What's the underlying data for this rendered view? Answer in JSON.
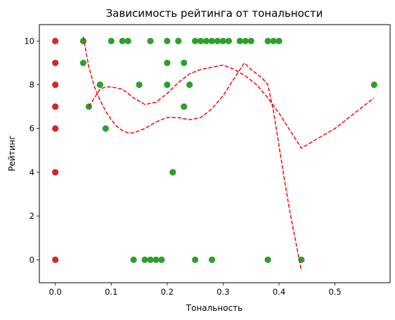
{
  "chart_data": {
    "type": "scatter",
    "title": "Зависимость рейтинга от тональности",
    "xlabel": "Тональность",
    "ylabel": "Рейтинг",
    "xlim": [
      -0.0285,
      0.5985
    ],
    "ylim": [
      -1.05,
      10.75
    ],
    "x_ticks": [
      0.0,
      0.1,
      0.2,
      0.3,
      0.4,
      0.5
    ],
    "x_tick_labels": [
      "0.0",
      "0.1",
      "0.2",
      "0.3",
      "0.4",
      "0.5"
    ],
    "y_ticks": [
      0,
      2,
      4,
      6,
      8,
      10
    ],
    "y_tick_labels": [
      "0",
      "2",
      "4",
      "6",
      "8",
      "10"
    ],
    "grid": false,
    "colors": {
      "green": "#2ca02c",
      "red": "#d62728",
      "line": "#ff0000"
    },
    "series": [
      {
        "color": "#2ca02c",
        "points": [
          [
            0.05,
            10
          ],
          [
            0.1,
            10
          ],
          [
            0.12,
            10
          ],
          [
            0.13,
            10
          ],
          [
            0.17,
            10
          ],
          [
            0.2,
            10
          ],
          [
            0.22,
            10
          ],
          [
            0.25,
            10
          ],
          [
            0.26,
            10
          ],
          [
            0.27,
            10
          ],
          [
            0.28,
            10
          ],
          [
            0.29,
            10
          ],
          [
            0.3,
            10
          ],
          [
            0.31,
            10
          ],
          [
            0.33,
            10
          ],
          [
            0.34,
            10
          ],
          [
            0.35,
            10
          ],
          [
            0.38,
            10
          ],
          [
            0.39,
            10
          ],
          [
            0.4,
            10
          ],
          [
            0.05,
            9
          ],
          [
            0.2,
            9
          ],
          [
            0.23,
            9
          ],
          [
            0.08,
            8
          ],
          [
            0.15,
            8
          ],
          [
            0.2,
            8
          ],
          [
            0.24,
            8
          ],
          [
            0.57,
            8
          ],
          [
            0.06,
            7
          ],
          [
            0.23,
            7
          ],
          [
            0.09,
            6
          ],
          [
            0.21,
            4
          ],
          [
            0.14,
            0
          ],
          [
            0.16,
            0
          ],
          [
            0.17,
            0
          ],
          [
            0.18,
            0
          ],
          [
            0.19,
            0
          ],
          [
            0.25,
            0
          ],
          [
            0.28,
            0
          ],
          [
            0.38,
            0
          ],
          [
            0.44,
            0
          ]
        ]
      },
      {
        "color": "#d62728",
        "points": [
          [
            0,
            10
          ],
          [
            0,
            9
          ],
          [
            0,
            8
          ],
          [
            0,
            7
          ],
          [
            0,
            6
          ],
          [
            0,
            4
          ],
          [
            0,
            0
          ]
        ]
      }
    ],
    "trend_lines": [
      {
        "style": "dashed",
        "color": "#ff0000",
        "points": [
          [
            0.05,
            10.2
          ],
          [
            0.06,
            8.8
          ],
          [
            0.07,
            7.9
          ],
          [
            0.08,
            7.3
          ],
          [
            0.09,
            6.8
          ],
          [
            0.1,
            6.4
          ],
          [
            0.11,
            6.1
          ],
          [
            0.12,
            5.9
          ],
          [
            0.13,
            5.8
          ],
          [
            0.14,
            5.8
          ],
          [
            0.16,
            6.0
          ],
          [
            0.18,
            6.3
          ],
          [
            0.2,
            6.5
          ],
          [
            0.22,
            6.5
          ],
          [
            0.24,
            6.4
          ],
          [
            0.26,
            6.5
          ],
          [
            0.28,
            6.9
          ],
          [
            0.3,
            7.5
          ],
          [
            0.32,
            8.3
          ],
          [
            0.338,
            9.0
          ],
          [
            0.35,
            8.7
          ],
          [
            0.37,
            8.3
          ],
          [
            0.38,
            8.0
          ],
          [
            0.39,
            6.8
          ],
          [
            0.4,
            5.2
          ],
          [
            0.41,
            3.6
          ],
          [
            0.42,
            2.1
          ],
          [
            0.43,
            0.8
          ],
          [
            0.44,
            -0.5
          ]
        ]
      },
      {
        "style": "dashed",
        "color": "#ff0000",
        "points": [
          [
            0.06,
            7.0
          ],
          [
            0.08,
            7.8
          ],
          [
            0.09,
            7.9
          ],
          [
            0.1,
            7.9
          ],
          [
            0.12,
            7.8
          ],
          [
            0.14,
            7.4
          ],
          [
            0.16,
            7.1
          ],
          [
            0.18,
            7.2
          ],
          [
            0.2,
            7.6
          ],
          [
            0.22,
            8.1
          ],
          [
            0.24,
            8.5
          ],
          [
            0.26,
            8.7
          ],
          [
            0.28,
            8.8
          ],
          [
            0.3,
            8.9
          ],
          [
            0.32,
            8.7
          ],
          [
            0.34,
            8.4
          ],
          [
            0.36,
            8.0
          ],
          [
            0.38,
            7.4
          ],
          [
            0.4,
            6.7
          ],
          [
            0.42,
            5.9
          ],
          [
            0.44,
            5.1
          ],
          [
            0.5,
            6.0
          ],
          [
            0.57,
            7.4
          ]
        ]
      }
    ]
  }
}
